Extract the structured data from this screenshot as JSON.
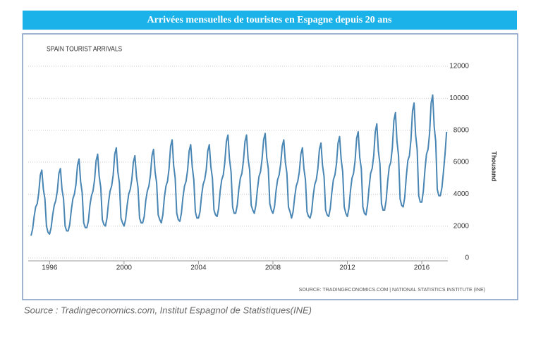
{
  "banner": "Arrivées mensuelles de touristes en Espagne depuis 20 ans",
  "caption": "Source : Tradingeconomics.com, Institut Espagnol de Statistiques(INE)",
  "chart_data": {
    "type": "line",
    "title": "SPAIN TOURIST ARRIVALS",
    "y_label": "Thousand",
    "source": "SOURCE: TRADINGECONOMICS.COM | NATIONAL STATISTICS INSTITUTE (INE)",
    "color": "#4a86b4",
    "grid": true,
    "xlim": [
      1994.85,
      2017.4
    ],
    "xticks": [
      1996,
      2000,
      2004,
      2008,
      2012,
      2016
    ],
    "ylim": [
      0,
      12000
    ],
    "yticks": [
      0,
      2000,
      4000,
      6000,
      8000,
      10000,
      12000
    ],
    "x": [
      "1995-01",
      "1995-02",
      "1995-03",
      "1995-04",
      "1995-05",
      "1995-06",
      "1995-07",
      "1995-08",
      "1995-09",
      "1995-10",
      "1995-11",
      "1995-12",
      "1996-01",
      "1996-02",
      "1996-03",
      "1996-04",
      "1996-05",
      "1996-06",
      "1996-07",
      "1996-08",
      "1996-09",
      "1996-10",
      "1996-11",
      "1996-12",
      "1997-01",
      "1997-02",
      "1997-03",
      "1997-04",
      "1997-05",
      "1997-06",
      "1997-07",
      "1997-08",
      "1997-09",
      "1997-10",
      "1997-11",
      "1997-12",
      "1998-01",
      "1998-02",
      "1998-03",
      "1998-04",
      "1998-05",
      "1998-06",
      "1998-07",
      "1998-08",
      "1998-09",
      "1998-10",
      "1998-11",
      "1998-12",
      "1999-01",
      "1999-02",
      "1999-03",
      "1999-04",
      "1999-05",
      "1999-06",
      "1999-07",
      "1999-08",
      "1999-09",
      "1999-10",
      "1999-11",
      "1999-12",
      "2000-01",
      "2000-02",
      "2000-03",
      "2000-04",
      "2000-05",
      "2000-06",
      "2000-07",
      "2000-08",
      "2000-09",
      "2000-10",
      "2000-11",
      "2000-12",
      "2001-01",
      "2001-02",
      "2001-03",
      "2001-04",
      "2001-05",
      "2001-06",
      "2001-07",
      "2001-08",
      "2001-09",
      "2001-10",
      "2001-11",
      "2001-12",
      "2002-01",
      "2002-02",
      "2002-03",
      "2002-04",
      "2002-05",
      "2002-06",
      "2002-07",
      "2002-08",
      "2002-09",
      "2002-10",
      "2002-11",
      "2002-12",
      "2003-01",
      "2003-02",
      "2003-03",
      "2003-04",
      "2003-05",
      "2003-06",
      "2003-07",
      "2003-08",
      "2003-09",
      "2003-10",
      "2003-11",
      "2003-12",
      "2004-01",
      "2004-02",
      "2004-03",
      "2004-04",
      "2004-05",
      "2004-06",
      "2004-07",
      "2004-08",
      "2004-09",
      "2004-10",
      "2004-11",
      "2004-12",
      "2005-01",
      "2005-02",
      "2005-03",
      "2005-04",
      "2005-05",
      "2005-06",
      "2005-07",
      "2005-08",
      "2005-09",
      "2005-10",
      "2005-11",
      "2005-12",
      "2006-01",
      "2006-02",
      "2006-03",
      "2006-04",
      "2006-05",
      "2006-06",
      "2006-07",
      "2006-08",
      "2006-09",
      "2006-10",
      "2006-11",
      "2006-12",
      "2007-01",
      "2007-02",
      "2007-03",
      "2007-04",
      "2007-05",
      "2007-06",
      "2007-07",
      "2007-08",
      "2007-09",
      "2007-10",
      "2007-11",
      "2007-12",
      "2008-01",
      "2008-02",
      "2008-03",
      "2008-04",
      "2008-05",
      "2008-06",
      "2008-07",
      "2008-08",
      "2008-09",
      "2008-10",
      "2008-11",
      "2008-12",
      "2009-01",
      "2009-02",
      "2009-03",
      "2009-04",
      "2009-05",
      "2009-06",
      "2009-07",
      "2009-08",
      "2009-09",
      "2009-10",
      "2009-11",
      "2009-12",
      "2010-01",
      "2010-02",
      "2010-03",
      "2010-04",
      "2010-05",
      "2010-06",
      "2010-07",
      "2010-08",
      "2010-09",
      "2010-10",
      "2010-11",
      "2010-12",
      "2011-01",
      "2011-02",
      "2011-03",
      "2011-04",
      "2011-05",
      "2011-06",
      "2011-07",
      "2011-08",
      "2011-09",
      "2011-10",
      "2011-11",
      "2011-12",
      "2012-01",
      "2012-02",
      "2012-03",
      "2012-04",
      "2012-05",
      "2012-06",
      "2012-07",
      "2012-08",
      "2012-09",
      "2012-10",
      "2012-11",
      "2012-12",
      "2013-01",
      "2013-02",
      "2013-03",
      "2013-04",
      "2013-05",
      "2013-06",
      "2013-07",
      "2013-08",
      "2013-09",
      "2013-10",
      "2013-11",
      "2013-12",
      "2014-01",
      "2014-02",
      "2014-03",
      "2014-04",
      "2014-05",
      "2014-06",
      "2014-07",
      "2014-08",
      "2014-09",
      "2014-10",
      "2014-11",
      "2014-12",
      "2015-01",
      "2015-02",
      "2015-03",
      "2015-04",
      "2015-05",
      "2015-06",
      "2015-07",
      "2015-08",
      "2015-09",
      "2015-10",
      "2015-11",
      "2015-12",
      "2016-01",
      "2016-02",
      "2016-03",
      "2016-04",
      "2016-05",
      "2016-06",
      "2016-07",
      "2016-08",
      "2016-09",
      "2016-10",
      "2016-11",
      "2016-12",
      "2017-01",
      "2017-02",
      "2017-03",
      "2017-04",
      "2017-05"
    ],
    "values": [
      1400,
      1800,
      2600,
      3200,
      3400,
      4100,
      5200,
      5500,
      4300,
      3700,
      2000,
      1600,
      1500,
      1900,
      2700,
      3300,
      3600,
      4200,
      5300,
      5600,
      4300,
      3700,
      2000,
      1700,
      1700,
      2100,
      3000,
      3700,
      4000,
      4600,
      5800,
      6200,
      4800,
      4100,
      2200,
      1900,
      1900,
      2300,
      3300,
      3900,
      4200,
      4900,
      6100,
      6500,
      5100,
      4400,
      2400,
      2100,
      2000,
      2500,
      3500,
      4200,
      4500,
      5200,
      6500,
      6900,
      5400,
      4700,
      2500,
      2200,
      2000,
      2400,
      3300,
      4000,
      4300,
      4900,
      6000,
      6400,
      5100,
      4400,
      2500,
      2200,
      2200,
      2600,
      3600,
      4200,
      4500,
      5200,
      6400,
      6800,
      5400,
      4700,
      2700,
      2400,
      2200,
      2700,
      3800,
      4500,
      4800,
      5600,
      7000,
      7400,
      5800,
      5000,
      2800,
      2400,
      2300,
      2800,
      3800,
      4500,
      4800,
      5500,
      6700,
      7100,
      5700,
      4900,
      2900,
      2500,
      2500,
      2900,
      3900,
      4600,
      4900,
      5500,
      6700,
      7100,
      5700,
      5000,
      3000,
      2700,
      2600,
      3100,
      4200,
      4900,
      5200,
      6000,
      7300,
      7700,
      6200,
      5400,
      3200,
      2800,
      2800,
      3300,
      4300,
      5000,
      5300,
      6100,
      7300,
      7700,
      6200,
      5500,
      3300,
      3000,
      2800,
      3300,
      4300,
      5100,
      5400,
      6200,
      7400,
      7800,
      6300,
      5600,
      3400,
      3000,
      2800,
      3200,
      4200,
      4900,
      5200,
      5900,
      7000,
      7400,
      6000,
      5300,
      3200,
      2900,
      2500,
      2900,
      3800,
      4500,
      4800,
      5400,
      6500,
      6900,
      5600,
      4900,
      2900,
      2600,
      2500,
      2900,
      3900,
      4600,
      4900,
      5600,
      6800,
      7200,
      5800,
      5100,
      3000,
      2700,
      2600,
      3100,
      4100,
      4900,
      5200,
      5900,
      7200,
      7600,
      6200,
      5400,
      3200,
      2800,
      2600,
      3100,
      4200,
      5000,
      5300,
      6100,
      7500,
      7900,
      6300,
      5600,
      3200,
      2800,
      2700,
      3300,
      4400,
      5300,
      5600,
      6400,
      7900,
      8400,
      6700,
      5900,
      3400,
      3000,
      3000,
      3600,
      4800,
      5700,
      6000,
      6900,
      8600,
      9100,
      7300,
      6400,
      3700,
      3300,
      3200,
      3800,
      5100,
      6100,
      6400,
      7400,
      9200,
      9700,
      7700,
      6800,
      3900,
      3500,
      3500,
      4200,
      5500,
      6500,
      6800,
      7800,
      9700,
      10200,
      8200,
      7300,
      4300,
      3900,
      3900,
      4400,
      5400,
      6500,
      7900
    ]
  }
}
